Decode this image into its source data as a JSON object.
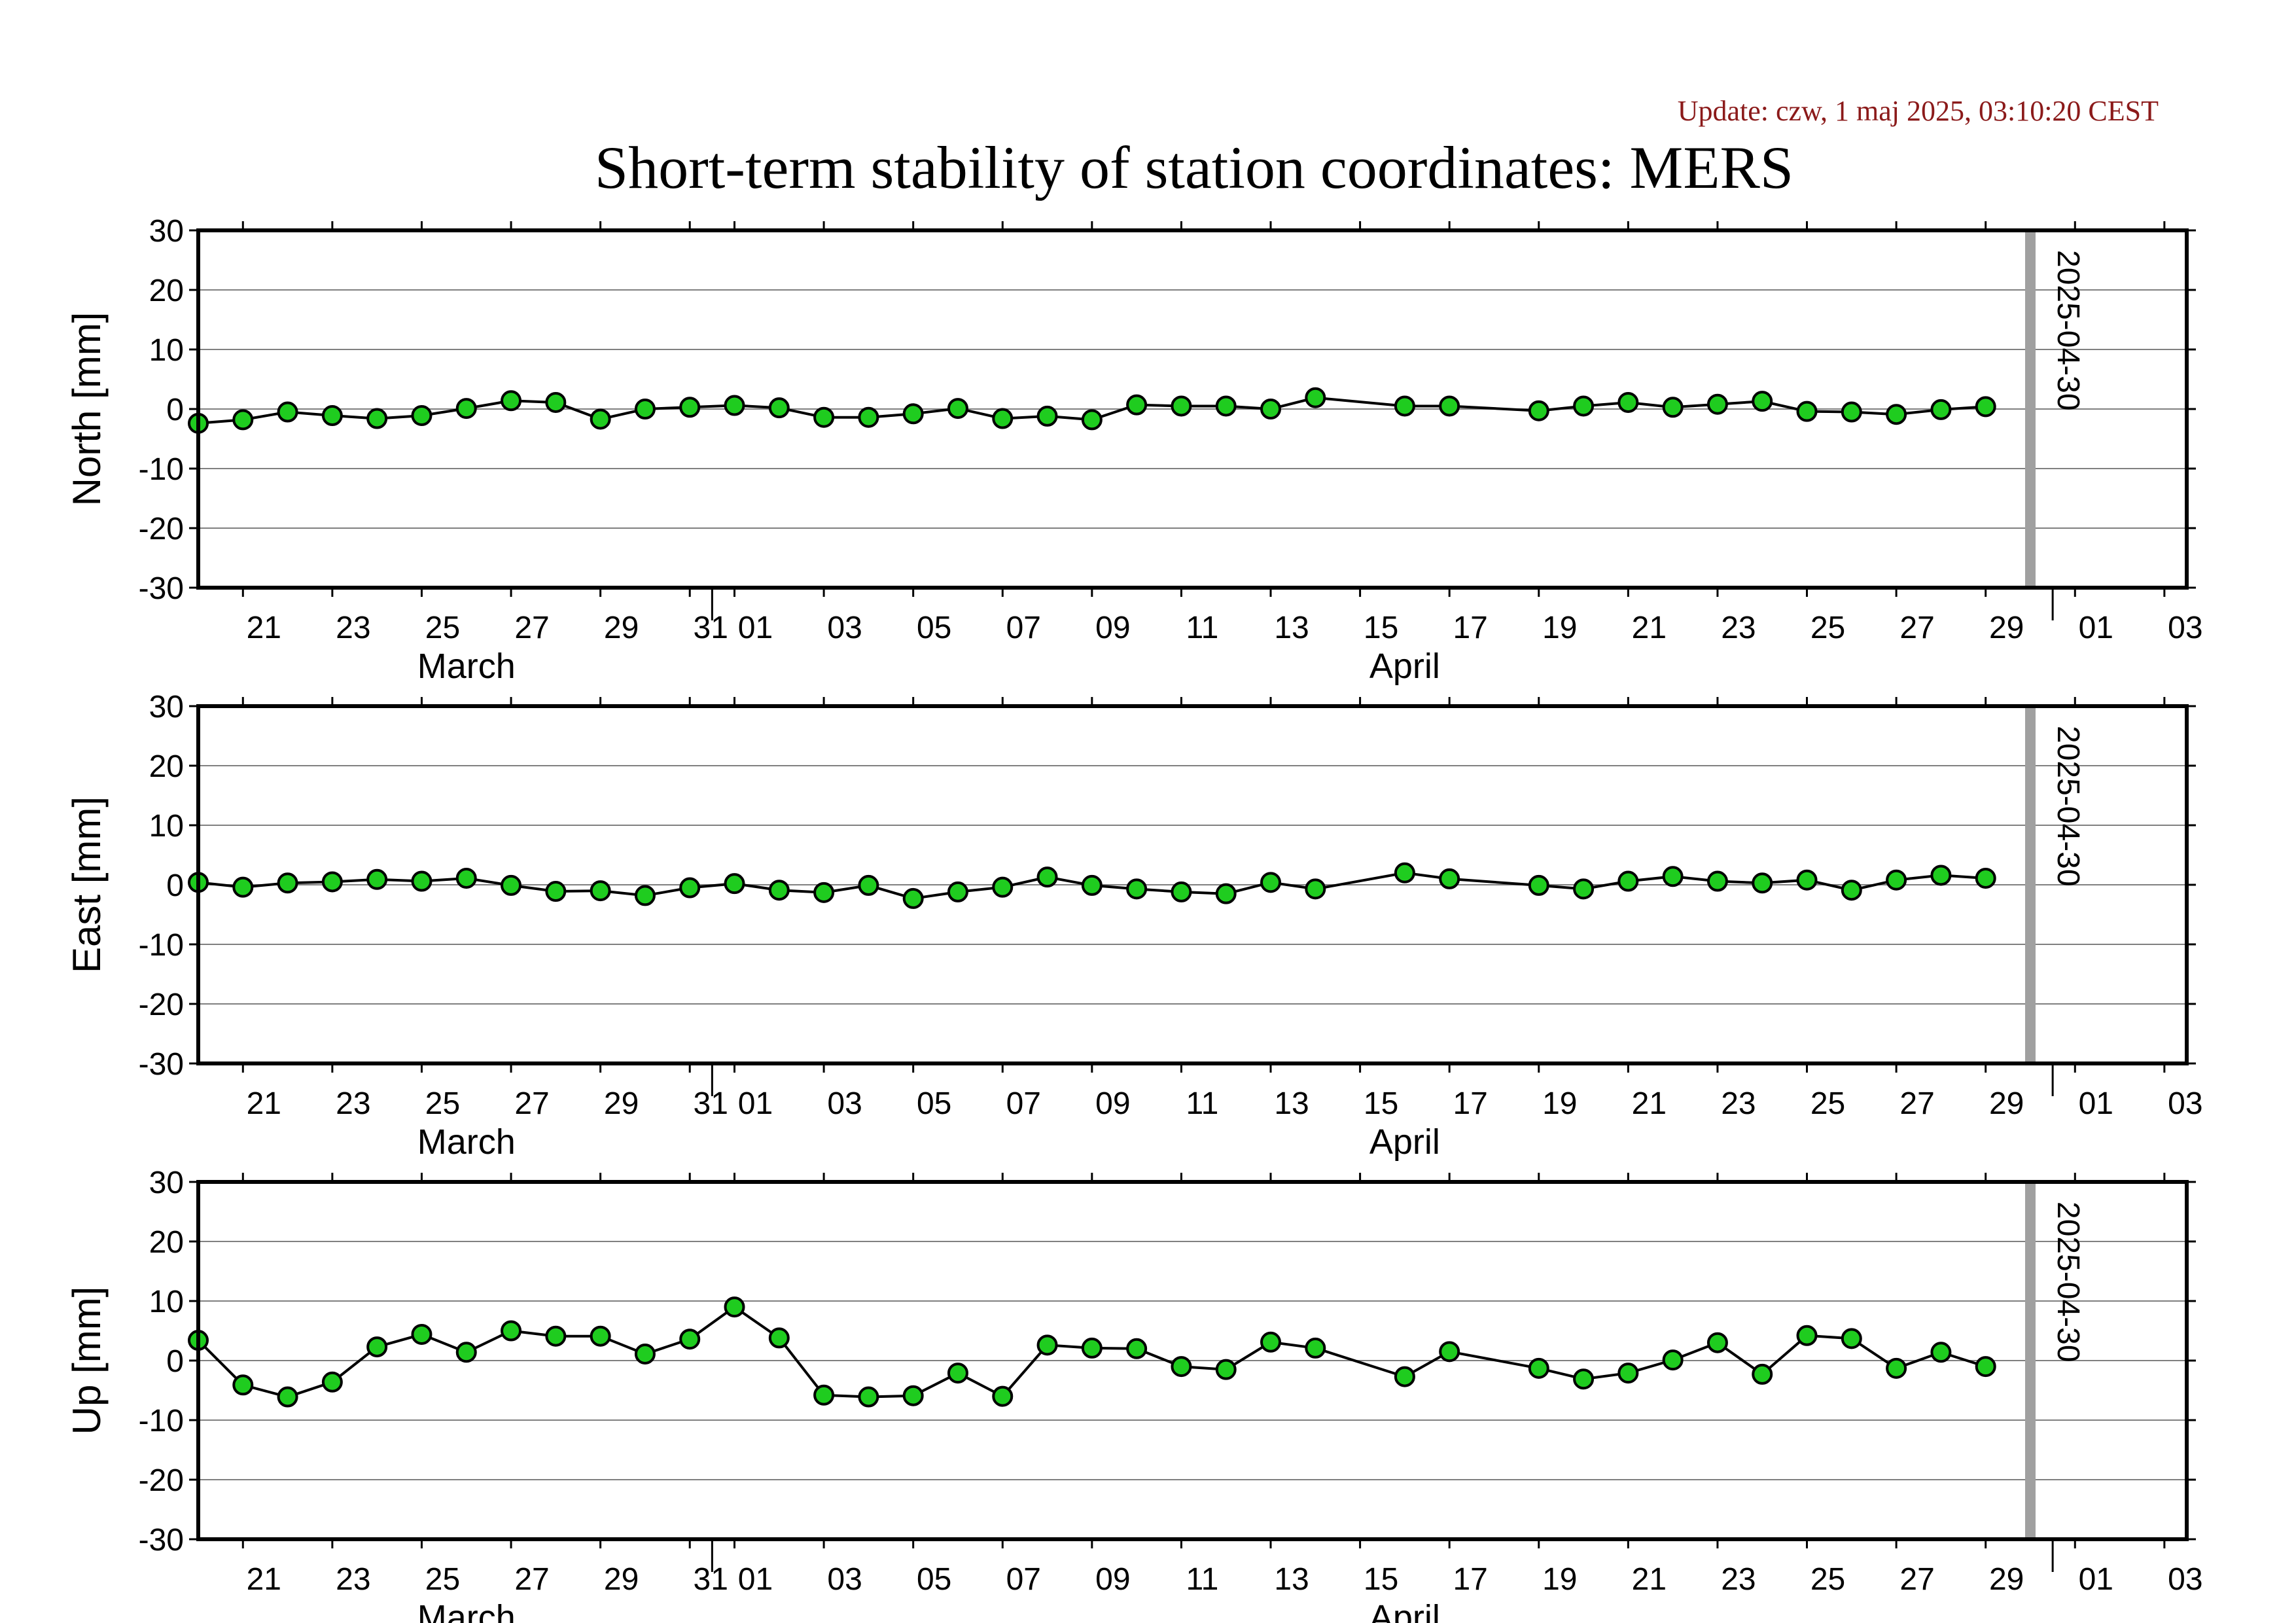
{
  "update_label": "Update: czw, 1 maj 2025, 03:10:20 CEST",
  "title": "Short-term stability of station coordinates: MERS",
  "colors": {
    "update_text": "#8b1a1a",
    "marker_fill": "#1fcc1f",
    "marker_stroke": "#000000",
    "line": "#000000",
    "grid": "#808080",
    "marker_line": "#a0a0a0"
  },
  "chart_data": {
    "type": "line",
    "x_ticks": [
      "21",
      "23",
      "25",
      "27",
      "29",
      "31",
      "01",
      "03",
      "05",
      "07",
      "09",
      "11",
      "13",
      "15",
      "17",
      "19",
      "21",
      "23",
      "25",
      "27",
      "29",
      "01",
      "03"
    ],
    "month_labels": [
      "March",
      "April"
    ],
    "marker": {
      "label": "2025-04-30",
      "date": "2025-04-30"
    },
    "xlim": [
      "2025-03-20",
      "2025-05-03"
    ],
    "panels": [
      {
        "ylabel": "North [mm]",
        "ylim": [
          -30,
          30
        ],
        "yticks": [
          "30",
          "20",
          "10",
          "0",
          "-10",
          "-20",
          "-30"
        ],
        "points": [
          [
            "2025-03-20",
            -2.4
          ],
          [
            "2025-03-21",
            -1.8
          ],
          [
            "2025-03-22",
            -0.5
          ],
          [
            "2025-03-23",
            -1.1
          ],
          [
            "2025-03-24",
            -1.6
          ],
          [
            "2025-03-25",
            -1.1
          ],
          [
            "2025-03-26",
            0.1
          ],
          [
            "2025-03-27",
            1.4
          ],
          [
            "2025-03-28",
            1.1
          ],
          [
            "2025-03-29",
            -1.7
          ],
          [
            "2025-03-30",
            0.0
          ],
          [
            "2025-03-31",
            0.3
          ],
          [
            "2025-04-01",
            0.6
          ],
          [
            "2025-04-02",
            0.2
          ],
          [
            "2025-04-03",
            -1.4
          ],
          [
            "2025-04-04",
            -1.4
          ],
          [
            "2025-04-05",
            -0.8
          ],
          [
            "2025-04-06",
            0.1
          ],
          [
            "2025-04-07",
            -1.6
          ],
          [
            "2025-04-08",
            -1.2
          ],
          [
            "2025-04-09",
            -1.8
          ],
          [
            "2025-04-10",
            0.7
          ],
          [
            "2025-04-11",
            0.5
          ],
          [
            "2025-04-12",
            0.5
          ],
          [
            "2025-04-13",
            0.0
          ],
          [
            "2025-04-14",
            1.9
          ],
          [
            "2025-04-16",
            0.5
          ],
          [
            "2025-04-17",
            0.5
          ],
          [
            "2025-04-19",
            -0.3
          ],
          [
            "2025-04-20",
            0.5
          ],
          [
            "2025-04-21",
            1.1
          ],
          [
            "2025-04-22",
            0.3
          ],
          [
            "2025-04-23",
            0.8
          ],
          [
            "2025-04-24",
            1.3
          ],
          [
            "2025-04-25",
            -0.4
          ],
          [
            "2025-04-26",
            -0.5
          ],
          [
            "2025-04-27",
            -0.9
          ],
          [
            "2025-04-28",
            -0.1
          ],
          [
            "2025-04-29",
            0.4
          ]
        ]
      },
      {
        "ylabel": "East [mm]",
        "ylim": [
          -30,
          30
        ],
        "yticks": [
          "30",
          "20",
          "10",
          "0",
          "-10",
          "-20",
          "-30"
        ],
        "points": [
          [
            "2025-03-20",
            0.4
          ],
          [
            "2025-03-21",
            -0.4
          ],
          [
            "2025-03-22",
            0.3
          ],
          [
            "2025-03-23",
            0.5
          ],
          [
            "2025-03-24",
            0.9
          ],
          [
            "2025-03-25",
            0.6
          ],
          [
            "2025-03-26",
            1.1
          ],
          [
            "2025-03-27",
            -0.1
          ],
          [
            "2025-03-28",
            -1.1
          ],
          [
            "2025-03-29",
            -1.0
          ],
          [
            "2025-03-30",
            -1.8
          ],
          [
            "2025-03-31",
            -0.5
          ],
          [
            "2025-04-01",
            0.2
          ],
          [
            "2025-04-02",
            -0.9
          ],
          [
            "2025-04-03",
            -1.3
          ],
          [
            "2025-04-04",
            -0.1
          ],
          [
            "2025-04-05",
            -2.3
          ],
          [
            "2025-04-06",
            -1.2
          ],
          [
            "2025-04-07",
            -0.4
          ],
          [
            "2025-04-08",
            1.3
          ],
          [
            "2025-04-09",
            -0.1
          ],
          [
            "2025-04-10",
            -0.7
          ],
          [
            "2025-04-11",
            -1.2
          ],
          [
            "2025-04-12",
            -1.5
          ],
          [
            "2025-04-13",
            0.4
          ],
          [
            "2025-04-14",
            -0.7
          ],
          [
            "2025-04-16",
            2.0
          ],
          [
            "2025-04-17",
            1.0
          ],
          [
            "2025-04-19",
            -0.1
          ],
          [
            "2025-04-20",
            -0.7
          ],
          [
            "2025-04-21",
            0.6
          ],
          [
            "2025-04-22",
            1.4
          ],
          [
            "2025-04-23",
            0.6
          ],
          [
            "2025-04-24",
            0.3
          ],
          [
            "2025-04-25",
            0.8
          ],
          [
            "2025-04-26",
            -0.9
          ],
          [
            "2025-04-27",
            0.8
          ],
          [
            "2025-04-28",
            1.6
          ],
          [
            "2025-04-29",
            1.1
          ]
        ]
      },
      {
        "ylabel": "Up [mm]",
        "ylim": [
          -30,
          30
        ],
        "yticks": [
          "30",
          "20",
          "10",
          "0",
          "-10",
          "-20",
          "-30"
        ],
        "points": [
          [
            "2025-03-20",
            3.4
          ],
          [
            "2025-03-21",
            -4.1
          ],
          [
            "2025-03-22",
            -6.1
          ],
          [
            "2025-03-23",
            -3.6
          ],
          [
            "2025-03-24",
            2.3
          ],
          [
            "2025-03-25",
            4.4
          ],
          [
            "2025-03-26",
            1.4
          ],
          [
            "2025-03-27",
            5.0
          ],
          [
            "2025-03-28",
            4.1
          ],
          [
            "2025-03-29",
            4.1
          ],
          [
            "2025-03-30",
            1.1
          ],
          [
            "2025-03-31",
            3.6
          ],
          [
            "2025-04-01",
            9.0
          ],
          [
            "2025-04-02",
            3.8
          ],
          [
            "2025-04-03",
            -5.8
          ],
          [
            "2025-04-04",
            -6.1
          ],
          [
            "2025-04-05",
            -5.9
          ],
          [
            "2025-04-06",
            -2.1
          ],
          [
            "2025-04-07",
            -6.0
          ],
          [
            "2025-04-08",
            2.6
          ],
          [
            "2025-04-09",
            2.1
          ],
          [
            "2025-04-10",
            2.0
          ],
          [
            "2025-04-11",
            -1.0
          ],
          [
            "2025-04-12",
            -1.5
          ],
          [
            "2025-04-13",
            3.1
          ],
          [
            "2025-04-14",
            2.1
          ],
          [
            "2025-04-16",
            -2.7
          ],
          [
            "2025-04-17",
            1.5
          ],
          [
            "2025-04-19",
            -1.3
          ],
          [
            "2025-04-20",
            -3.1
          ],
          [
            "2025-04-21",
            -2.1
          ],
          [
            "2025-04-22",
            0.1
          ],
          [
            "2025-04-23",
            3.0
          ],
          [
            "2025-04-24",
            -2.3
          ],
          [
            "2025-04-25",
            4.2
          ],
          [
            "2025-04-26",
            3.7
          ],
          [
            "2025-04-27",
            -1.3
          ],
          [
            "2025-04-28",
            1.4
          ],
          [
            "2025-04-29",
            -1.0
          ]
        ]
      }
    ]
  }
}
